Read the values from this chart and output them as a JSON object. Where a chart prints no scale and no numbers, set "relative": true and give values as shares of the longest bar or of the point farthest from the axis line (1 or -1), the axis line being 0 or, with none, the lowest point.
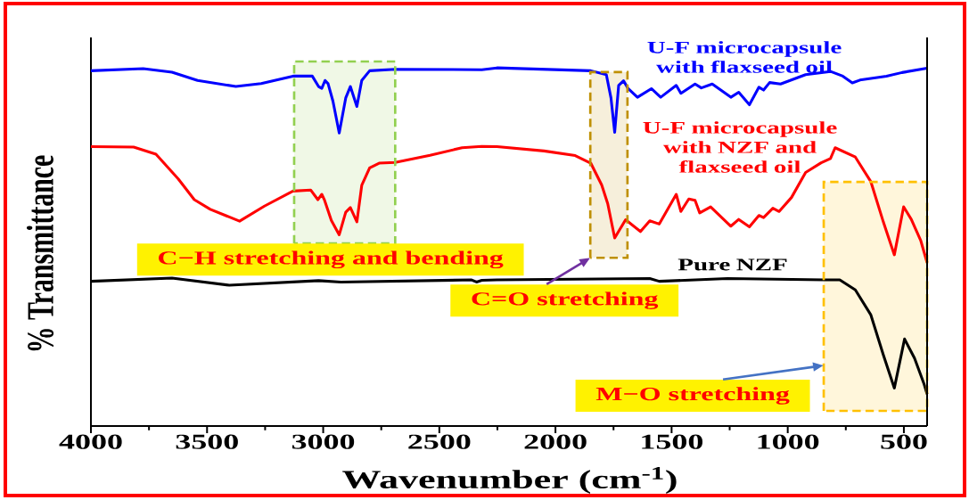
{
  "chart_data": {
    "type": "line",
    "relative": true,
    "xlabel": "Wavenumber (cm$^{-1}$)",
    "ylabel": "% Transmittance",
    "xlim": [
      4000,
      400
    ],
    "xticks": [
      4000,
      {
        "value": 3750,
        "label": null
      },
      3500,
      {
        "value": 3250,
        "label": null
      },
      3000,
      {
        "value": 2750,
        "label": null
      },
      2500,
      {
        "value": 2250,
        "label": null
      },
      2000,
      {
        "value": 1750,
        "label": null
      },
      1500,
      {
        "value": 1250,
        "label": null
      },
      1000,
      {
        "value": 750,
        "label": null
      },
      500
    ],
    "series": [
      {
        "name": "U-F microcapsule with flaxseed oil",
        "color": "#0000ff",
        "x": [
          4000,
          3775,
          3651,
          3541,
          3376,
          3267,
          3130,
          3047,
          3020,
          3006,
          2992,
          2979,
          2958,
          2931,
          2903,
          2883,
          2855,
          2834,
          2800,
          2690,
          2317,
          2252,
          1848,
          1781,
          1761,
          1745,
          1728,
          1707,
          1687,
          1647,
          1587,
          1547,
          1480,
          1460,
          1399,
          1372,
          1325,
          1245,
          1211,
          1165,
          1124,
          1104,
          1078,
          1031,
          923,
          816,
          763,
          722,
          689,
          575,
          508,
          400
        ],
        "values": [
          0.992,
          0.998,
          0.988,
          0.965,
          0.948,
          0.956,
          0.977,
          0.977,
          0.948,
          0.943,
          0.965,
          0.956,
          0.907,
          0.818,
          0.916,
          0.948,
          0.892,
          0.965,
          0.992,
          0.996,
          0.995,
          1.0,
          0.992,
          0.981,
          0.916,
          0.82,
          0.951,
          0.964,
          0.942,
          0.918,
          0.942,
          0.918,
          0.951,
          0.929,
          0.955,
          0.944,
          0.955,
          0.918,
          0.932,
          0.897,
          0.946,
          0.938,
          0.959,
          0.955,
          0.981,
          0.99,
          0.977,
          0.958,
          0.966,
          0.977,
          0.987,
          0.999
        ]
      },
      {
        "name": "U-F microcapsule with NZF and flaxseed oil",
        "color": "#ff0000",
        "x": [
          4000,
          3816,
          3720,
          3624,
          3555,
          3486,
          3360,
          3253,
          3130,
          3054,
          3023,
          3006,
          2995,
          2965,
          2931,
          2903,
          2883,
          2855,
          2834,
          2800,
          2759,
          2690,
          2540,
          2402,
          2317,
          2252,
          2049,
          1915,
          1848,
          1801,
          1775,
          1745,
          1721,
          1698,
          1634,
          1594,
          1553,
          1480,
          1460,
          1426,
          1399,
          1379,
          1332,
          1245,
          1211,
          1165,
          1124,
          1104,
          1064,
          1037,
          984,
          923,
          856,
          816,
          796,
          709,
          642,
          588,
          541,
          501,
          468,
          427,
          400
        ],
        "values": [
          0.78,
          0.779,
          0.759,
          0.69,
          0.632,
          0.605,
          0.572,
          0.614,
          0.656,
          0.659,
          0.632,
          0.647,
          0.632,
          0.574,
          0.534,
          0.597,
          0.61,
          0.57,
          0.672,
          0.721,
          0.734,
          0.736,
          0.756,
          0.777,
          0.781,
          0.78,
          0.768,
          0.755,
          0.734,
          0.673,
          0.621,
          0.525,
          0.551,
          0.576,
          0.543,
          0.573,
          0.564,
          0.647,
          0.599,
          0.634,
          0.63,
          0.595,
          0.612,
          0.558,
          0.577,
          0.556,
          0.588,
          0.582,
          0.608,
          0.599,
          0.638,
          0.708,
          0.735,
          0.747,
          0.777,
          0.751,
          0.682,
          0.569,
          0.478,
          0.612,
          0.577,
          0.517,
          0.456
        ]
      },
      {
        "name": "Pure NZF",
        "color": "#000000",
        "x": [
          4000,
          3651,
          3404,
          3020,
          2924,
          2361,
          2340,
          2317,
          2252,
          1594,
          1553,
          1259,
          843,
          776,
          709,
          642,
          588,
          541,
          497,
          454,
          414,
          400
        ],
        "values": [
          0.404,
          0.413,
          0.393,
          0.406,
          0.402,
          0.408,
          0.402,
          0.407,
          0.408,
          0.412,
          0.404,
          0.412,
          0.408,
          0.408,
          0.38,
          0.31,
          0.198,
          0.106,
          0.243,
          0.189,
          0.119,
          0.089
        ]
      }
    ],
    "bands": [
      {
        "axis": "x",
        "from": 3125,
        "to": 2690,
        "label": "C−H stretching and bending",
        "color": "#92d050"
      },
      {
        "axis": "x",
        "from": 1850,
        "to": 1690,
        "label": "C=O stretching",
        "color": "#bf9000"
      },
      {
        "axis": "x",
        "from": 845,
        "to": 400,
        "label": "M−O stretching",
        "color": "#ffc000"
      }
    ]
  }
}
